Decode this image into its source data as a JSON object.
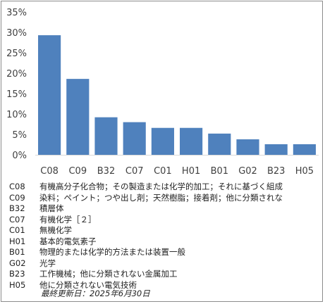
{
  "chart_data": {
    "type": "bar",
    "categories": [
      "C08",
      "C09",
      "B32",
      "C07",
      "C01",
      "H01",
      "B01",
      "G02",
      "B23",
      "H05"
    ],
    "values": [
      29.3,
      18.6,
      9.2,
      8.0,
      6.6,
      6.6,
      5.2,
      3.8,
      2.6,
      2.6
    ],
    "yticks": [
      "0%",
      "5%",
      "10%",
      "15%",
      "20%",
      "25%",
      "30%",
      "35%"
    ],
    "ylim": [
      0,
      35
    ],
    "bar_color": "#4f81bd",
    "grid": false
  },
  "legend": [
    {
      "code": "C08",
      "desc": "有機高分子化合物；その製造または化学的加工；それに基づく組成"
    },
    {
      "code": "C09",
      "desc": "染料；ペイント；つや出し剤；天然樹脂；接着剤；他に分類されな"
    },
    {
      "code": "B32",
      "desc": "積層体"
    },
    {
      "code": "C07",
      "desc": "有機化学［２］"
    },
    {
      "code": "C01",
      "desc": "無機化学"
    },
    {
      "code": "H01",
      "desc": "基本的電気素子"
    },
    {
      "code": "B01",
      "desc": "物理的または化学的方法または装置一般"
    },
    {
      "code": "G02",
      "desc": "光学"
    },
    {
      "code": "B23",
      "desc": "工作機械；他に分類されない金属加工"
    },
    {
      "code": "H05",
      "desc": "他に分類されない電気技術"
    }
  ],
  "footer": "最終更新日：2025年6月30日"
}
